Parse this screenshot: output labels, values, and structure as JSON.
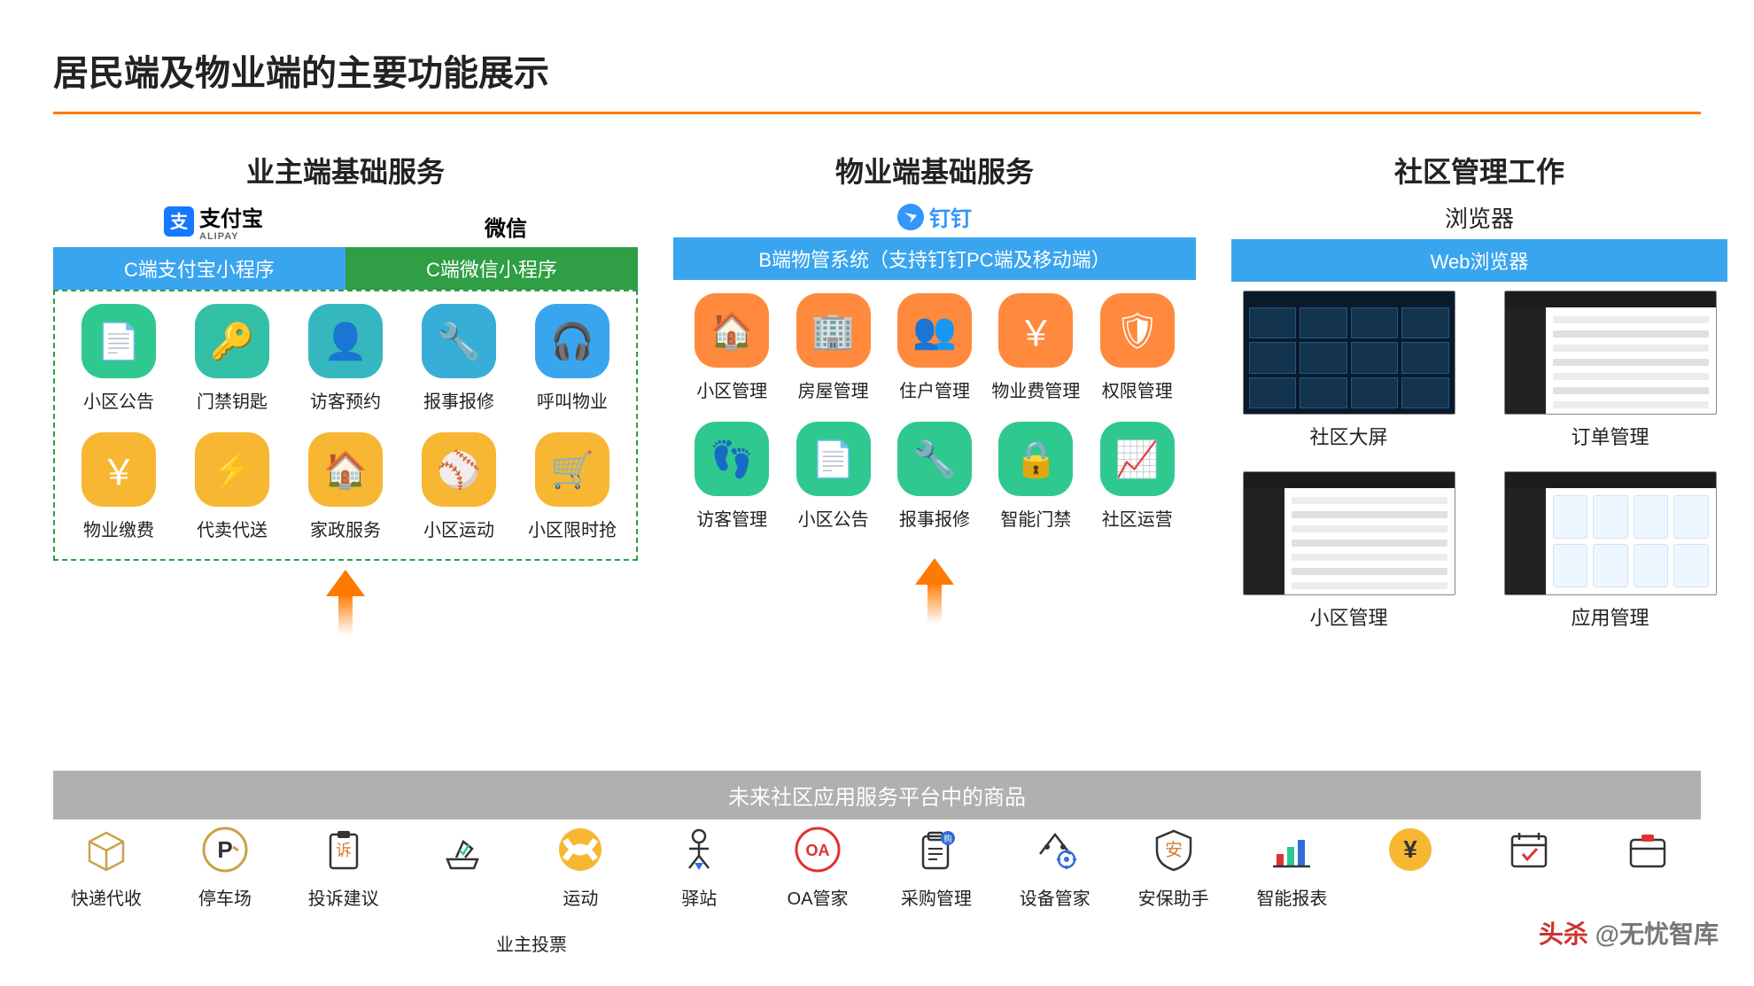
{
  "title": "居民端及物业端的主要功能展示",
  "accent_color": "#ff7a00",
  "columns": {
    "owner": {
      "header": "业主端基础服务",
      "brands": {
        "alipay": {
          "name": "支付宝",
          "sub": "ALIPAY",
          "color": "#1677ff"
        },
        "wechat": {
          "name": "微信",
          "color": "#1aad19"
        }
      },
      "tabs": {
        "alipay": {
          "label": "C端支付宝小程序",
          "bg": "#3aa5ef"
        },
        "wechat": {
          "label": "C端微信小程序",
          "bg": "#2f9e44"
        }
      },
      "row1_colors": {
        "start": "#2fc98f",
        "end": "#3aa5ef"
      },
      "row2_color": "#f7b733",
      "icons": {
        "r1": [
          {
            "label": "小区公告",
            "name": "announcement-icon"
          },
          {
            "label": "门禁钥匙",
            "name": "key-icon"
          },
          {
            "label": "访客预约",
            "name": "visitor-icon"
          },
          {
            "label": "报事报修",
            "name": "repair-icon"
          },
          {
            "label": "呼叫物业",
            "name": "call-icon"
          }
        ],
        "r2": [
          {
            "label": "物业缴费",
            "name": "payment-icon"
          },
          {
            "label": "代卖代送",
            "name": "delivery-icon"
          },
          {
            "label": "家政服务",
            "name": "housekeeping-icon"
          },
          {
            "label": "小区运动",
            "name": "sport-icon"
          },
          {
            "label": "小区限时抢",
            "name": "flashsale-icon"
          }
        ]
      }
    },
    "property": {
      "header": "物业端基础服务",
      "brand": {
        "name": "钉钉",
        "color": "#3296fa"
      },
      "tab": {
        "label": "B端物管系统（支持钉钉PC端及移动端）",
        "bg": "#3aa5ef"
      },
      "row1_color": "#ff8a3d",
      "row2_color": "#2fc98f",
      "icons": {
        "r1": [
          {
            "label": "小区管理",
            "name": "community-icon"
          },
          {
            "label": "房屋管理",
            "name": "house-icon"
          },
          {
            "label": "住户管理",
            "name": "resident-icon"
          },
          {
            "label": "物业费管理",
            "name": "fee-icon"
          },
          {
            "label": "权限管理",
            "name": "permission-icon"
          }
        ],
        "r2": [
          {
            "label": "访客管理",
            "name": "guest-icon"
          },
          {
            "label": "小区公告",
            "name": "notice-icon"
          },
          {
            "label": "报事报修",
            "name": "maintenance-icon"
          },
          {
            "label": "智能门禁",
            "name": "smartlock-icon"
          },
          {
            "label": "社区运营",
            "name": "operation-icon"
          }
        ]
      }
    },
    "admin": {
      "header": "社区管理工作",
      "sub_header": "浏览器",
      "tab": {
        "label": "Web浏览器",
        "bg": "#3aa5ef"
      },
      "thumbs": [
        {
          "label": "社区大屏",
          "name": "dashboard-thumb",
          "variant": "dark"
        },
        {
          "label": "订单管理",
          "name": "order-thumb",
          "variant": "light-rows"
        },
        {
          "label": "小区管理",
          "name": "community-thumb",
          "variant": "light-rows"
        },
        {
          "label": "应用管理",
          "name": "app-thumb",
          "variant": "light-cards"
        }
      ]
    }
  },
  "platform_bar": "未来社区应用服务平台中的商品",
  "platform_bar_bg": "#b0b0b0",
  "services": [
    {
      "label": "快递代收",
      "name": "express-icon"
    },
    {
      "label": "停车场",
      "name": "parking-icon"
    },
    {
      "label": "投诉建议",
      "name": "complaint-icon"
    },
    {
      "label": "",
      "name": "vote-icon"
    },
    {
      "label": "运动",
      "name": "exercise-icon"
    },
    {
      "label": "驿站",
      "name": "station-icon"
    },
    {
      "label": "OA管家",
      "name": "oa-icon"
    },
    {
      "label": "采购管理",
      "name": "purchase-icon"
    },
    {
      "label": "设备管家",
      "name": "device-icon"
    },
    {
      "label": "安保助手",
      "name": "security-icon"
    },
    {
      "label": "智能报表",
      "name": "report-icon"
    },
    {
      "label": "",
      "name": "finance-icon"
    },
    {
      "label": "",
      "name": "schedule-icon"
    },
    {
      "label": "",
      "name": "archive-icon"
    }
  ],
  "extra_label": "业主投票",
  "watermark": {
    "prefix": "头杀",
    "text": " @无忧智库"
  }
}
